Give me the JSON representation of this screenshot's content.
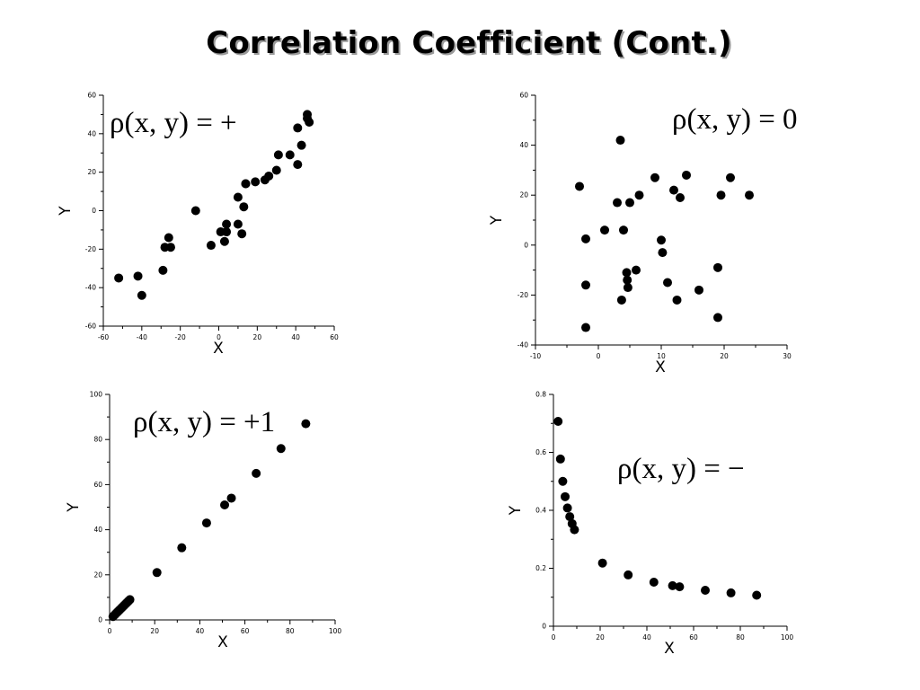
{
  "slide": {
    "title": "Correlation Coefficient (Cont.)"
  },
  "chart_data": [
    {
      "type": "scatter",
      "annotation": "ρ(x, y) = +",
      "xlabel": "X",
      "ylabel": "Y",
      "xlim": [
        -60,
        60
      ],
      "ylim": [
        -60,
        60
      ],
      "xticks": [
        -60,
        -40,
        -20,
        0,
        20,
        40,
        60
      ],
      "yticks": [
        -60,
        -40,
        -20,
        0,
        20,
        40,
        60
      ],
      "x": [
        -52,
        -42,
        -40,
        -29,
        -28,
        -26,
        -25,
        -12,
        -4,
        1,
        3,
        4,
        4,
        10,
        10,
        12,
        13,
        14,
        14,
        19,
        24,
        26,
        30,
        31,
        37,
        41,
        41,
        43,
        46,
        46,
        47
      ],
      "y": [
        -35,
        -34,
        -44,
        -31,
        -19,
        -14,
        -19,
        0,
        -18,
        -11,
        -16,
        -11,
        -7,
        7,
        -7,
        -12,
        2,
        14,
        14,
        15,
        16,
        18,
        21,
        29,
        29,
        24,
        43,
        34,
        50,
        48,
        46
      ]
    },
    {
      "type": "scatter",
      "annotation": "ρ(x, y) = 0",
      "xlabel": "X",
      "ylabel": "Y",
      "xlim": [
        -10,
        30
      ],
      "ylim": [
        -40,
        60
      ],
      "xticks": [
        -10,
        0,
        10,
        20,
        30
      ],
      "yticks": [
        -40,
        -20,
        0,
        20,
        40,
        60
      ],
      "x": [
        -3,
        -2,
        -2,
        -2,
        1,
        3,
        3.5,
        3.7,
        4,
        4.5,
        4.6,
        4.7,
        5,
        6,
        6.5,
        9,
        10,
        10.2,
        11,
        12,
        12.5,
        13,
        14,
        16,
        19,
        19,
        19.5,
        21,
        24
      ],
      "y": [
        23.5,
        2.5,
        -16,
        -33,
        6,
        17,
        42,
        -22,
        6,
        -11,
        -14,
        -17,
        17,
        -10,
        20,
        27,
        2,
        -3,
        -15,
        22,
        -22,
        19,
        28,
        -18,
        -9,
        -29,
        20,
        27,
        20
      ]
    },
    {
      "type": "scatter",
      "annotation": "ρ(x, y) = +1",
      "xlabel": "X",
      "ylabel": "Y",
      "xlim": [
        0,
        100
      ],
      "ylim": [
        0,
        100
      ],
      "xticks": [
        0,
        20,
        40,
        60,
        80,
        100
      ],
      "yticks": [
        0,
        20,
        40,
        60,
        80,
        100
      ],
      "x": [
        1.5,
        2,
        2.5,
        3,
        3.5,
        4,
        4.5,
        5,
        5.5,
        6,
        6.5,
        7,
        7.5,
        8,
        8.5,
        9,
        21,
        32,
        43,
        51,
        54,
        65,
        76,
        87
      ],
      "y": [
        1.5,
        2,
        2.5,
        3,
        3.5,
        4,
        4.5,
        5,
        5.5,
        6,
        6.5,
        7,
        7.5,
        8,
        8.5,
        9,
        21,
        32,
        43,
        51,
        54,
        65,
        76,
        87
      ]
    },
    {
      "type": "scatter",
      "annotation": "ρ(x, y) = −",
      "xlabel": "X",
      "ylabel": "Y",
      "xlim": [
        0,
        100
      ],
      "ylim": [
        0,
        0.8
      ],
      "xticks": [
        0,
        20,
        40,
        60,
        80,
        100
      ],
      "yticks": [
        0,
        0.2,
        0.4,
        0.6,
        0.8
      ],
      "x": [
        2,
        3,
        4,
        5,
        6,
        7,
        8,
        9,
        21,
        32,
        43,
        51,
        54,
        65,
        76,
        87
      ],
      "y": [
        0.707,
        0.577,
        0.5,
        0.447,
        0.408,
        0.378,
        0.354,
        0.333,
        0.218,
        0.177,
        0.152,
        0.14,
        0.136,
        0.124,
        0.115,
        0.107
      ]
    }
  ]
}
